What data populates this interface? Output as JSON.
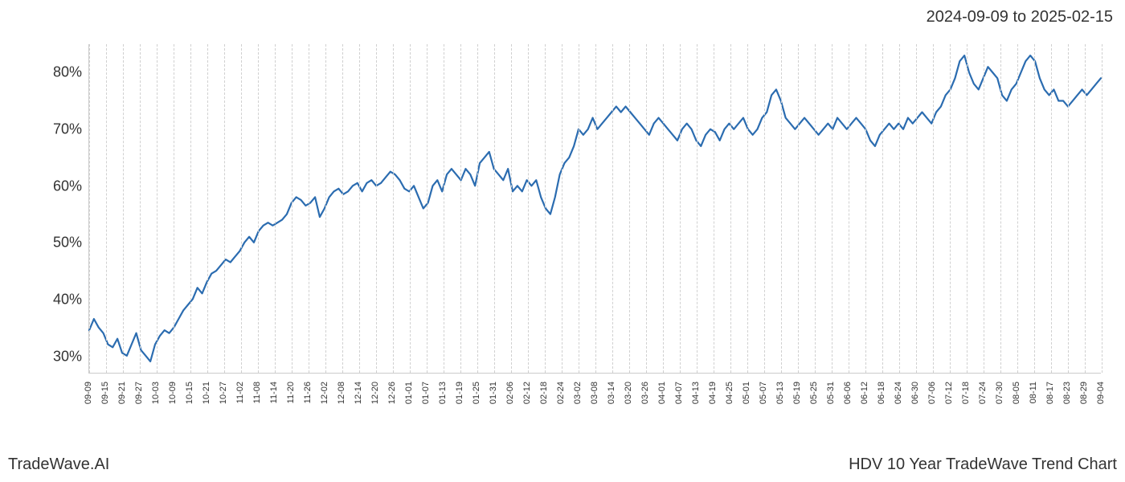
{
  "date_range": "2024-09-09 to 2025-02-15",
  "footer_left": "TradeWave.AI",
  "footer_right": "HDV 10 Year TradeWave Trend Chart",
  "chart": {
    "type": "line",
    "ylim": [
      27,
      85
    ],
    "y_ticks": [
      30,
      40,
      50,
      60,
      70,
      80
    ],
    "y_tick_suffix": "%",
    "y_tick_fontsize": 18,
    "x_tick_fontsize": 11,
    "x_tick_rotation": -90,
    "line_color": "#2b6cb0",
    "line_width": 2.2,
    "grid_color": "#d0d0d0",
    "grid_style": "dashed",
    "background_color": "#ffffff",
    "shade_color": "rgba(180,210,180,0.35)",
    "shade_x_start": "09-09",
    "shade_x_end": "02-15",
    "x_labels": [
      "09-09",
      "09-15",
      "09-21",
      "09-27",
      "10-03",
      "10-09",
      "10-15",
      "10-21",
      "10-27",
      "11-02",
      "11-08",
      "11-14",
      "11-20",
      "11-26",
      "12-02",
      "12-08",
      "12-14",
      "12-20",
      "12-26",
      "01-01",
      "01-07",
      "01-13",
      "01-19",
      "01-25",
      "01-31",
      "02-06",
      "02-12",
      "02-18",
      "02-24",
      "03-02",
      "03-08",
      "03-14",
      "03-20",
      "03-26",
      "04-01",
      "04-07",
      "04-13",
      "04-19",
      "04-25",
      "05-01",
      "05-07",
      "05-13",
      "05-19",
      "05-25",
      "05-31",
      "06-06",
      "06-12",
      "06-18",
      "06-24",
      "06-30",
      "07-06",
      "07-12",
      "07-18",
      "07-24",
      "07-30",
      "08-05",
      "08-11",
      "08-17",
      "08-23",
      "08-29",
      "09-04"
    ],
    "values": [
      34.5,
      36.5,
      35,
      34,
      32,
      31.5,
      33,
      30.5,
      30,
      32,
      34,
      31,
      30,
      29,
      32,
      33.5,
      34.5,
      34,
      35,
      36.5,
      38,
      39,
      40,
      42,
      41,
      43,
      44.5,
      45,
      46,
      47,
      46.5,
      47.5,
      48.5,
      50,
      51,
      50,
      52,
      53,
      53.5,
      53,
      53.5,
      54,
      55,
      57,
      58,
      57.5,
      56.5,
      57,
      58,
      54.5,
      56,
      58,
      59,
      59.5,
      58.5,
      59,
      60,
      60.5,
      59,
      60.5,
      61,
      60,
      60.5,
      61.5,
      62.5,
      62,
      61,
      59.5,
      59,
      60,
      58,
      56,
      57,
      60,
      61,
      59,
      62,
      63,
      62,
      61,
      63,
      62,
      60,
      64,
      65,
      66,
      63,
      62,
      61,
      63,
      59,
      60,
      59,
      61,
      60,
      61,
      58,
      56,
      55,
      58,
      62,
      64,
      65,
      67,
      70,
      69,
      70,
      72,
      70,
      71,
      72,
      73,
      74,
      73,
      74,
      73,
      72,
      71,
      70,
      69,
      71,
      72,
      71,
      70,
      69,
      68,
      70,
      71,
      70,
      68,
      67,
      69,
      70,
      69.5,
      68,
      70,
      71,
      70,
      71,
      72,
      70,
      69,
      70,
      72,
      73,
      76,
      77,
      75,
      72,
      71,
      70,
      71,
      72,
      71,
      70,
      69,
      70,
      71,
      70,
      72,
      71,
      70,
      71,
      72,
      71,
      70,
      68,
      67,
      69,
      70,
      71,
      70,
      71,
      70,
      72,
      71,
      72,
      73,
      72,
      71,
      73,
      74,
      76,
      77,
      79,
      82,
      83,
      80,
      78,
      77,
      79,
      81,
      80,
      79,
      76,
      75,
      77,
      78,
      80,
      82,
      83,
      82,
      79,
      77,
      76,
      77,
      75,
      75,
      74,
      75,
      76,
      77,
      76,
      77,
      78,
      79
    ]
  }
}
